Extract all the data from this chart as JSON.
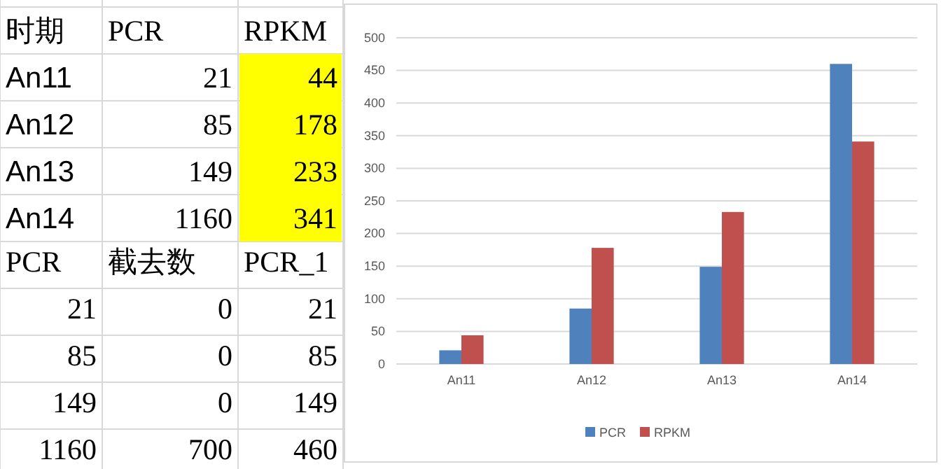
{
  "chart_data": [
    {
      "type": "other",
      "annotations": [
        "时期",
        "PCR",
        "RPKM",
        "An11",
        "21",
        "44",
        "An12",
        "85",
        "178",
        "An13",
        "149",
        "233",
        "An14",
        "1160",
        "341",
        "PCR",
        "截去数",
        "PCR_1",
        "21",
        "0",
        "21",
        "85",
        "0",
        "85",
        "149",
        "0",
        "149",
        "1160",
        "700",
        "460"
      ]
    },
    {
      "type": "bar",
      "categories": [
        "An11",
        "An12",
        "An13",
        "An14"
      ],
      "series": [
        {
          "name": "PCR",
          "color": "#4f81bd",
          "values": [
            21,
            85,
            149,
            460
          ]
        },
        {
          "name": "RPKM",
          "color": "#c0504d",
          "values": [
            44,
            178,
            233,
            341
          ]
        }
      ],
      "ylim": [
        0,
        500
      ],
      "yticks": [
        0,
        50,
        100,
        150,
        200,
        250,
        300,
        350,
        400,
        450,
        500
      ],
      "grid": "y",
      "legend": "bottom"
    }
  ]
}
